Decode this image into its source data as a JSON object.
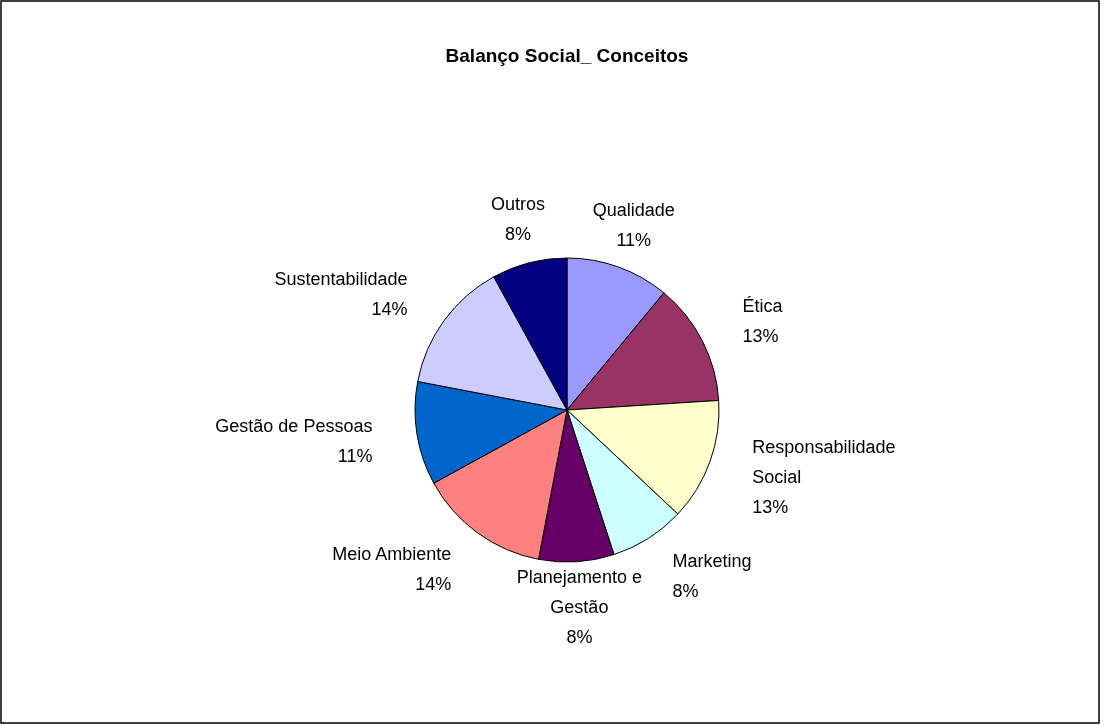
{
  "chart_data": {
    "type": "pie",
    "title": "Balanço Social_ Conceitos",
    "categories": [
      "Qualidade",
      "Ética",
      "Responsabilidade Social",
      "Marketing",
      "Planejamento e Gestão",
      "Meio Ambiente",
      "Gestão de Pessoas",
      "Sustentabilidade",
      "Outros"
    ],
    "values": [
      11,
      13,
      13,
      8,
      8,
      14,
      11,
      14,
      8
    ],
    "value_labels": [
      "11%",
      "13%",
      "13%",
      "8%",
      "8%",
      "14%",
      "11%",
      "14%",
      "8%"
    ],
    "colors": [
      "#9999ff",
      "#993366",
      "#ffffcc",
      "#ccffff",
      "#660066",
      "#ff8080",
      "#0066cc",
      "#ccccff",
      "#000080"
    ]
  }
}
